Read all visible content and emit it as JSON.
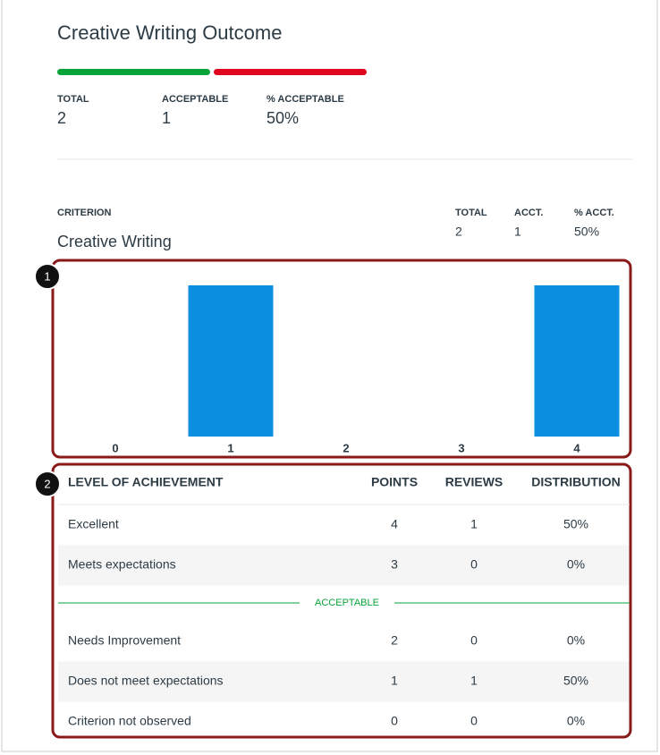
{
  "header": {
    "title": "Creative Writing Outcome"
  },
  "stats": [
    {
      "label": "TOTAL",
      "value": 2
    },
    {
      "label": "ACCEPTABLE",
      "value": 1
    },
    {
      "label": "% ACCEPTABLE",
      "value": "50%"
    }
  ],
  "criterion": {
    "label": "CRITERION",
    "name": "Creative Writing",
    "stats": [
      {
        "label": "TOTAL",
        "value": 2
      },
      {
        "label": "ACCT.",
        "value": 1
      },
      {
        "label": "% ACCT.",
        "value": "50%"
      }
    ]
  },
  "callouts": [
    "1",
    "2"
  ],
  "chart_data": {
    "type": "bar",
    "categories": [
      "0",
      "1",
      "2",
      "3",
      "4"
    ],
    "values": [
      0,
      1,
      0,
      0,
      1
    ],
    "color": "#0b8de0",
    "ylim": [
      0,
      1
    ]
  },
  "table": {
    "headers": [
      "LEVEL OF ACHIEVEMENT",
      "POINTS",
      "REVIEWS",
      "DISTRIBUTION"
    ],
    "rows": [
      [
        "Excellent",
        4,
        1,
        "50%"
      ],
      [
        "Meets expectations",
        3,
        0,
        "0%"
      ],
      [
        "Needs Improvement",
        2,
        0,
        "0%"
      ],
      [
        "Does not meet expectations",
        1,
        1,
        "50%"
      ],
      [
        "Criterion not observed",
        0,
        0,
        "0%"
      ]
    ],
    "divider_label": "ACCEPTABLE"
  }
}
